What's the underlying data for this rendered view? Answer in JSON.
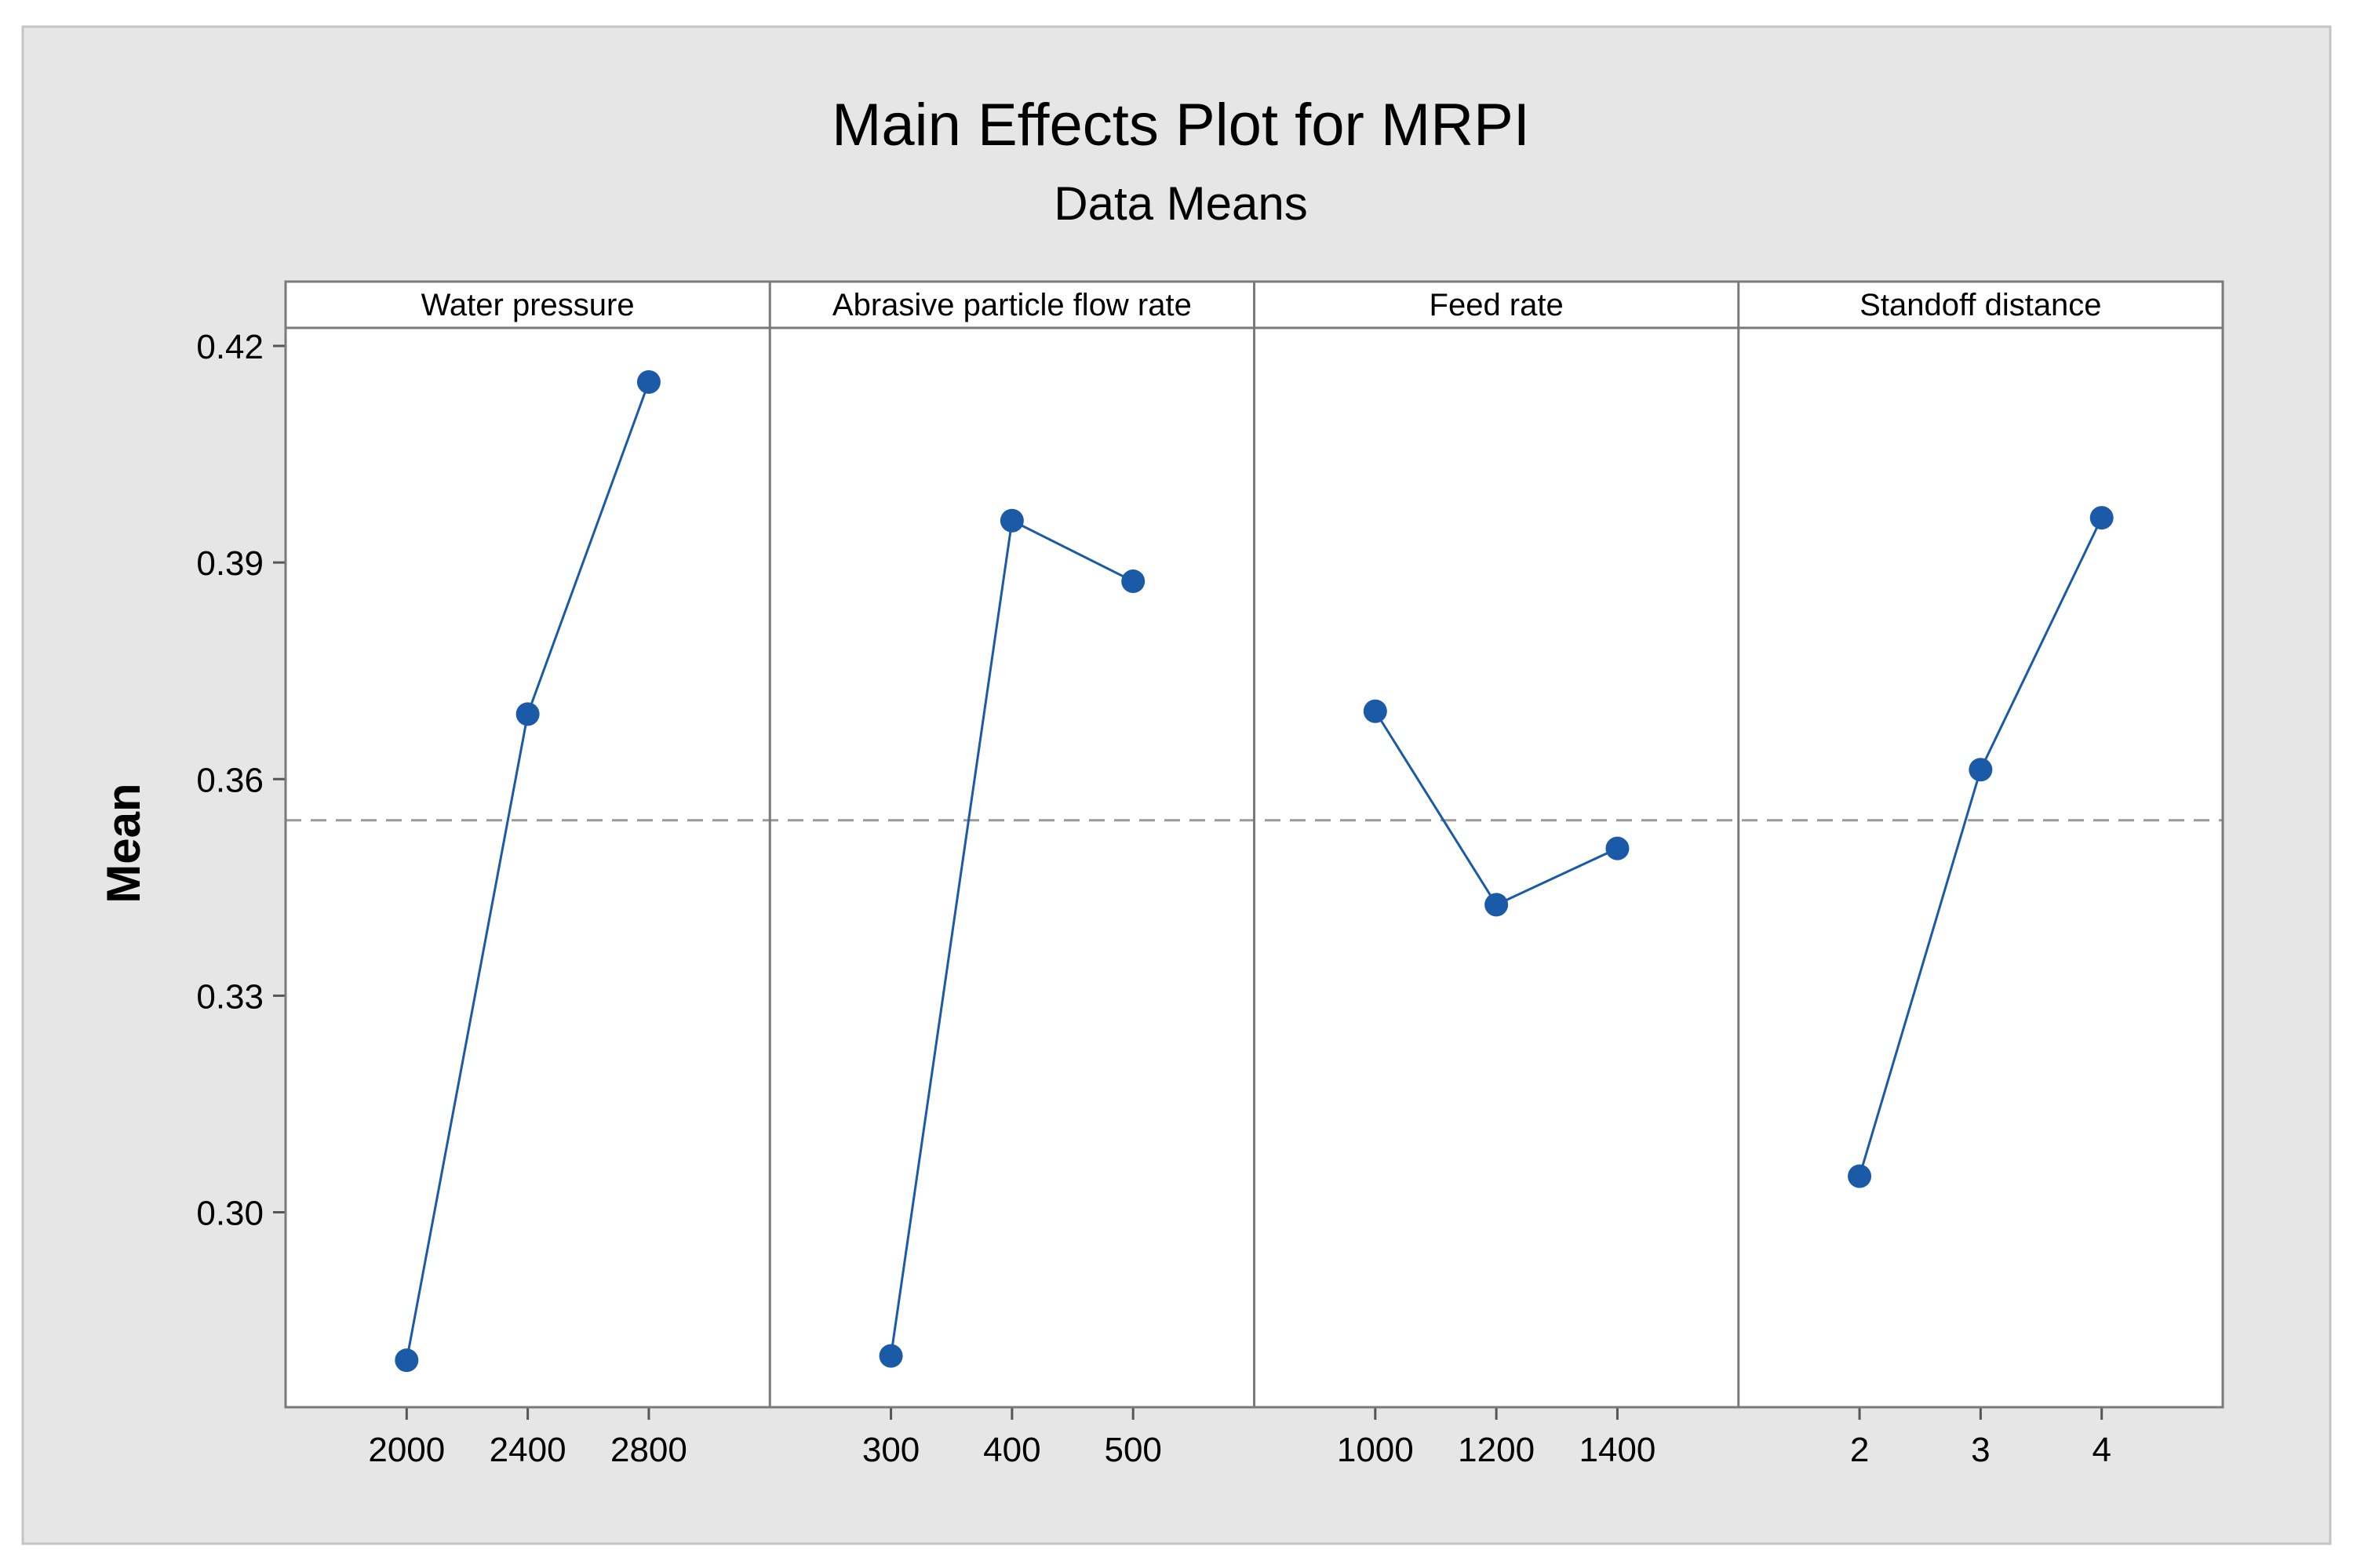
{
  "chart_data": {
    "type": "line",
    "title": "Main Effects Plot for MRPI",
    "subtitle": "Data Means",
    "ylabel": "Mean",
    "ylim": [
      0.273,
      0.4225
    ],
    "yticks": [
      "0.30",
      "0.33",
      "0.36",
      "0.39",
      "0.42"
    ],
    "reference_line": {
      "style": "dashed",
      "value": 0.3543
    },
    "series_color": "#1a5aa6",
    "panels": [
      {
        "name": "Water pressure",
        "x": [
          "2000",
          "2400",
          "2800"
        ],
        "values": [
          0.2795,
          0.369,
          0.415
        ]
      },
      {
        "name": "Abrasive particle flow rate",
        "x": [
          "300",
          "400",
          "500"
        ],
        "values": [
          0.2801,
          0.3958,
          0.3874
        ]
      },
      {
        "name": "Feed rate",
        "x": [
          "1000",
          "1200",
          "1400"
        ],
        "values": [
          0.3694,
          0.3426,
          0.3504
        ]
      },
      {
        "name": "Standoff distance",
        "x": [
          "2",
          "3",
          "4"
        ],
        "values": [
          0.305,
          0.3613,
          0.3962
        ]
      }
    ]
  }
}
